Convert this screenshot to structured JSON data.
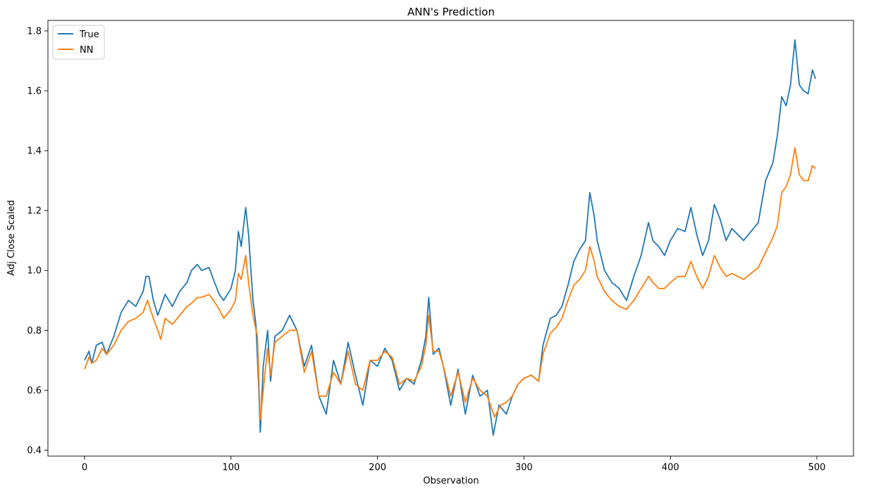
{
  "chart_data": {
    "type": "line",
    "title": "ANN's Prediction",
    "xlabel": "Observation",
    "ylabel": "Adj Close Scaled",
    "xlim": [
      -25,
      525
    ],
    "ylim": [
      0.38,
      1.835
    ],
    "xticks": [
      0,
      100,
      200,
      300,
      400,
      500
    ],
    "yticks": [
      0.4,
      0.6,
      0.8,
      1.0,
      1.2,
      1.4,
      1.6,
      1.8
    ],
    "ytick_labels": [
      "0.4",
      "0.6",
      "0.8",
      "1.0",
      "1.2",
      "1.4",
      "1.6",
      "1.8"
    ],
    "grid": false,
    "legend_position": "top-left",
    "series": [
      {
        "name": "True",
        "color": "#1f77b4",
        "points": [
          [
            0,
            0.7
          ],
          [
            3,
            0.73
          ],
          [
            5,
            0.69
          ],
          [
            8,
            0.75
          ],
          [
            12,
            0.76
          ],
          [
            15,
            0.72
          ],
          [
            20,
            0.78
          ],
          [
            25,
            0.86
          ],
          [
            30,
            0.9
          ],
          [
            35,
            0.88
          ],
          [
            40,
            0.93
          ],
          [
            42,
            0.98
          ],
          [
            44,
            0.98
          ],
          [
            47,
            0.9
          ],
          [
            50,
            0.85
          ],
          [
            55,
            0.92
          ],
          [
            60,
            0.88
          ],
          [
            65,
            0.93
          ],
          [
            70,
            0.96
          ],
          [
            73,
            1.0
          ],
          [
            77,
            1.02
          ],
          [
            80,
            1.0
          ],
          [
            85,
            1.01
          ],
          [
            88,
            0.97
          ],
          [
            92,
            0.92
          ],
          [
            95,
            0.9
          ],
          [
            100,
            0.94
          ],
          [
            103,
            1.0
          ],
          [
            105,
            1.13
          ],
          [
            107,
            1.08
          ],
          [
            110,
            1.21
          ],
          [
            112,
            1.12
          ],
          [
            115,
            0.9
          ],
          [
            117,
            0.82
          ],
          [
            119,
            0.6
          ],
          [
            120,
            0.46
          ],
          [
            122,
            0.68
          ],
          [
            125,
            0.8
          ],
          [
            127,
            0.63
          ],
          [
            130,
            0.78
          ],
          [
            135,
            0.8
          ],
          [
            140,
            0.85
          ],
          [
            145,
            0.8
          ],
          [
            150,
            0.68
          ],
          [
            155,
            0.75
          ],
          [
            160,
            0.58
          ],
          [
            165,
            0.52
          ],
          [
            170,
            0.7
          ],
          [
            175,
            0.62
          ],
          [
            180,
            0.76
          ],
          [
            185,
            0.65
          ],
          [
            190,
            0.55
          ],
          [
            195,
            0.7
          ],
          [
            200,
            0.68
          ],
          [
            205,
            0.74
          ],
          [
            210,
            0.7
          ],
          [
            215,
            0.6
          ],
          [
            220,
            0.64
          ],
          [
            225,
            0.62
          ],
          [
            230,
            0.7
          ],
          [
            233,
            0.78
          ],
          [
            235,
            0.91
          ],
          [
            238,
            0.72
          ],
          [
            242,
            0.74
          ],
          [
            245,
            0.68
          ],
          [
            250,
            0.55
          ],
          [
            255,
            0.67
          ],
          [
            260,
            0.52
          ],
          [
            265,
            0.65
          ],
          [
            270,
            0.58
          ],
          [
            275,
            0.6
          ],
          [
            279,
            0.45
          ],
          [
            283,
            0.55
          ],
          [
            288,
            0.52
          ],
          [
            292,
            0.58
          ],
          [
            296,
            0.62
          ],
          [
            300,
            0.64
          ],
          [
            305,
            0.65
          ],
          [
            310,
            0.63
          ],
          [
            313,
            0.75
          ],
          [
            318,
            0.84
          ],
          [
            322,
            0.85
          ],
          [
            326,
            0.88
          ],
          [
            330,
            0.95
          ],
          [
            334,
            1.03
          ],
          [
            338,
            1.07
          ],
          [
            342,
            1.1
          ],
          [
            345,
            1.26
          ],
          [
            348,
            1.18
          ],
          [
            350,
            1.1
          ],
          [
            355,
            1.0
          ],
          [
            360,
            0.96
          ],
          [
            365,
            0.94
          ],
          [
            370,
            0.9
          ],
          [
            375,
            0.98
          ],
          [
            380,
            1.05
          ],
          [
            385,
            1.16
          ],
          [
            388,
            1.1
          ],
          [
            392,
            1.08
          ],
          [
            396,
            1.05
          ],
          [
            400,
            1.1
          ],
          [
            405,
            1.14
          ],
          [
            410,
            1.13
          ],
          [
            414,
            1.21
          ],
          [
            418,
            1.12
          ],
          [
            422,
            1.05
          ],
          [
            426,
            1.1
          ],
          [
            430,
            1.22
          ],
          [
            434,
            1.17
          ],
          [
            438,
            1.1
          ],
          [
            442,
            1.14
          ],
          [
            446,
            1.12
          ],
          [
            450,
            1.1
          ],
          [
            455,
            1.13
          ],
          [
            460,
            1.16
          ],
          [
            465,
            1.3
          ],
          [
            470,
            1.36
          ],
          [
            473,
            1.45
          ],
          [
            476,
            1.58
          ],
          [
            479,
            1.55
          ],
          [
            482,
            1.62
          ],
          [
            485,
            1.77
          ],
          [
            488,
            1.62
          ],
          [
            491,
            1.6
          ],
          [
            494,
            1.59
          ],
          [
            497,
            1.67
          ],
          [
            499,
            1.64
          ]
        ]
      },
      {
        "name": "NN",
        "color": "#ff7f0e",
        "points": [
          [
            0,
            0.67
          ],
          [
            3,
            0.71
          ],
          [
            5,
            0.69
          ],
          [
            8,
            0.7
          ],
          [
            12,
            0.74
          ],
          [
            15,
            0.72
          ],
          [
            20,
            0.75
          ],
          [
            25,
            0.8
          ],
          [
            30,
            0.83
          ],
          [
            35,
            0.84
          ],
          [
            40,
            0.86
          ],
          [
            43,
            0.9
          ],
          [
            47,
            0.84
          ],
          [
            50,
            0.8
          ],
          [
            52,
            0.77
          ],
          [
            55,
            0.84
          ],
          [
            60,
            0.82
          ],
          [
            65,
            0.85
          ],
          [
            70,
            0.88
          ],
          [
            73,
            0.89
          ],
          [
            77,
            0.91
          ],
          [
            80,
            0.91
          ],
          [
            85,
            0.92
          ],
          [
            88,
            0.9
          ],
          [
            92,
            0.87
          ],
          [
            95,
            0.84
          ],
          [
            100,
            0.87
          ],
          [
            103,
            0.9
          ],
          [
            105,
            0.99
          ],
          [
            107,
            0.97
          ],
          [
            110,
            1.05
          ],
          [
            112,
            0.96
          ],
          [
            115,
            0.85
          ],
          [
            118,
            0.78
          ],
          [
            120,
            0.5
          ],
          [
            122,
            0.6
          ],
          [
            125,
            0.74
          ],
          [
            127,
            0.65
          ],
          [
            130,
            0.76
          ],
          [
            135,
            0.78
          ],
          [
            140,
            0.8
          ],
          [
            145,
            0.8
          ],
          [
            150,
            0.66
          ],
          [
            155,
            0.73
          ],
          [
            160,
            0.58
          ],
          [
            165,
            0.58
          ],
          [
            170,
            0.66
          ],
          [
            175,
            0.62
          ],
          [
            180,
            0.73
          ],
          [
            185,
            0.62
          ],
          [
            190,
            0.6
          ],
          [
            195,
            0.7
          ],
          [
            200,
            0.7
          ],
          [
            205,
            0.73
          ],
          [
            210,
            0.71
          ],
          [
            215,
            0.62
          ],
          [
            220,
            0.64
          ],
          [
            225,
            0.63
          ],
          [
            230,
            0.68
          ],
          [
            233,
            0.75
          ],
          [
            235,
            0.85
          ],
          [
            238,
            0.73
          ],
          [
            242,
            0.73
          ],
          [
            245,
            0.68
          ],
          [
            250,
            0.58
          ],
          [
            255,
            0.66
          ],
          [
            260,
            0.56
          ],
          [
            265,
            0.64
          ],
          [
            270,
            0.6
          ],
          [
            275,
            0.58
          ],
          [
            280,
            0.51
          ],
          [
            284,
            0.55
          ],
          [
            288,
            0.56
          ],
          [
            292,
            0.58
          ],
          [
            296,
            0.62
          ],
          [
            300,
            0.64
          ],
          [
            305,
            0.65
          ],
          [
            310,
            0.63
          ],
          [
            313,
            0.72
          ],
          [
            318,
            0.79
          ],
          [
            322,
            0.81
          ],
          [
            326,
            0.84
          ],
          [
            330,
            0.9
          ],
          [
            334,
            0.95
          ],
          [
            338,
            0.97
          ],
          [
            342,
            1.0
          ],
          [
            345,
            1.08
          ],
          [
            348,
            1.03
          ],
          [
            350,
            0.98
          ],
          [
            355,
            0.93
          ],
          [
            360,
            0.9
          ],
          [
            365,
            0.88
          ],
          [
            370,
            0.87
          ],
          [
            375,
            0.9
          ],
          [
            380,
            0.94
          ],
          [
            385,
            0.98
          ],
          [
            388,
            0.96
          ],
          [
            392,
            0.94
          ],
          [
            396,
            0.94
          ],
          [
            400,
            0.96
          ],
          [
            405,
            0.98
          ],
          [
            410,
            0.98
          ],
          [
            414,
            1.03
          ],
          [
            418,
            0.98
          ],
          [
            422,
            0.94
          ],
          [
            426,
            0.98
          ],
          [
            430,
            1.05
          ],
          [
            434,
            1.01
          ],
          [
            438,
            0.98
          ],
          [
            442,
            0.99
          ],
          [
            446,
            0.98
          ],
          [
            450,
            0.97
          ],
          [
            455,
            0.99
          ],
          [
            460,
            1.01
          ],
          [
            465,
            1.06
          ],
          [
            470,
            1.11
          ],
          [
            473,
            1.15
          ],
          [
            476,
            1.26
          ],
          [
            479,
            1.28
          ],
          [
            482,
            1.32
          ],
          [
            485,
            1.41
          ],
          [
            488,
            1.32
          ],
          [
            491,
            1.3
          ],
          [
            494,
            1.3
          ],
          [
            497,
            1.35
          ],
          [
            499,
            1.34
          ]
        ]
      }
    ]
  }
}
